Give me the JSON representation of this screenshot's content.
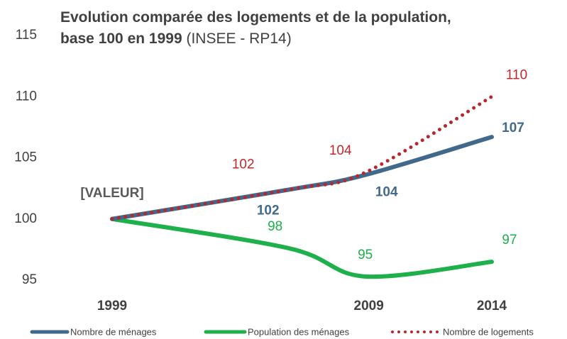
{
  "chart_data": {
    "type": "line",
    "title": "Evolution comparée des logements et de la population, base 100 en 1999",
    "subtitle": "(INSEE - RP14)",
    "x": [
      1999,
      2006,
      2009,
      2014
    ],
    "xlim": [
      1999,
      2014
    ],
    "xticks": [
      1999,
      2009,
      2014
    ],
    "ylim": [
      95,
      115
    ],
    "yticks": [
      95,
      100,
      105,
      110,
      115
    ],
    "grid": false,
    "annotations": [
      "[VALEUR]"
    ],
    "series": [
      {
        "name": "Nombre de ménages",
        "color": "#41698b",
        "style": "solid",
        "values": [
          100,
          102.4,
          103.6,
          106.7
        ],
        "value_labels": [
          null,
          "102",
          "104",
          "107"
        ]
      },
      {
        "name": "Population des ménages",
        "color": "#1db04b",
        "style": "solid",
        "values": [
          100,
          97.6,
          95.3,
          96.5
        ],
        "value_labels": [
          null,
          "98",
          "95",
          "97"
        ]
      },
      {
        "name": "Nombre de logements",
        "color": "#b52830",
        "style": "dotted",
        "values": [
          100,
          102.4,
          103.8,
          110
        ],
        "value_labels": [
          null,
          "102",
          "104",
          "110"
        ]
      }
    ],
    "legend": "bottom"
  }
}
